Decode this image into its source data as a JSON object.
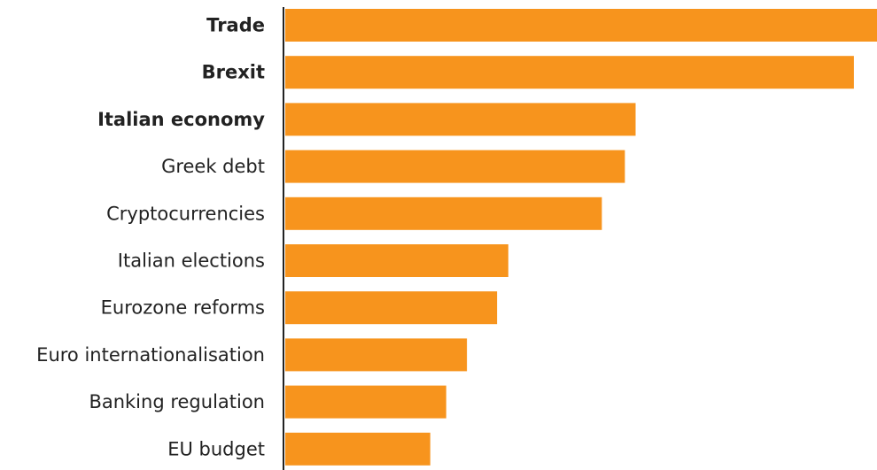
{
  "chart_data": {
    "type": "bar",
    "orientation": "horizontal",
    "categories": [
      "Trade",
      "Brexit",
      "Italian economy",
      "Greek debt",
      "Cryptocurrencies",
      "Italian elections",
      "Eurozone reforms",
      "Euro internationalisation",
      "Banking regulation",
      "EU budget"
    ],
    "values": [
      100,
      96.1,
      59.2,
      57.4,
      53.5,
      37.7,
      35.8,
      30.7,
      27.2,
      24.5
    ],
    "emphasized": [
      true,
      true,
      true,
      false,
      false,
      false,
      false,
      false,
      false,
      false
    ],
    "xlim": [
      0,
      100
    ],
    "bar_color": "#f7941d",
    "axis_color": "#222222",
    "label_color": "#222222",
    "grid": false,
    "legend": "none"
  }
}
